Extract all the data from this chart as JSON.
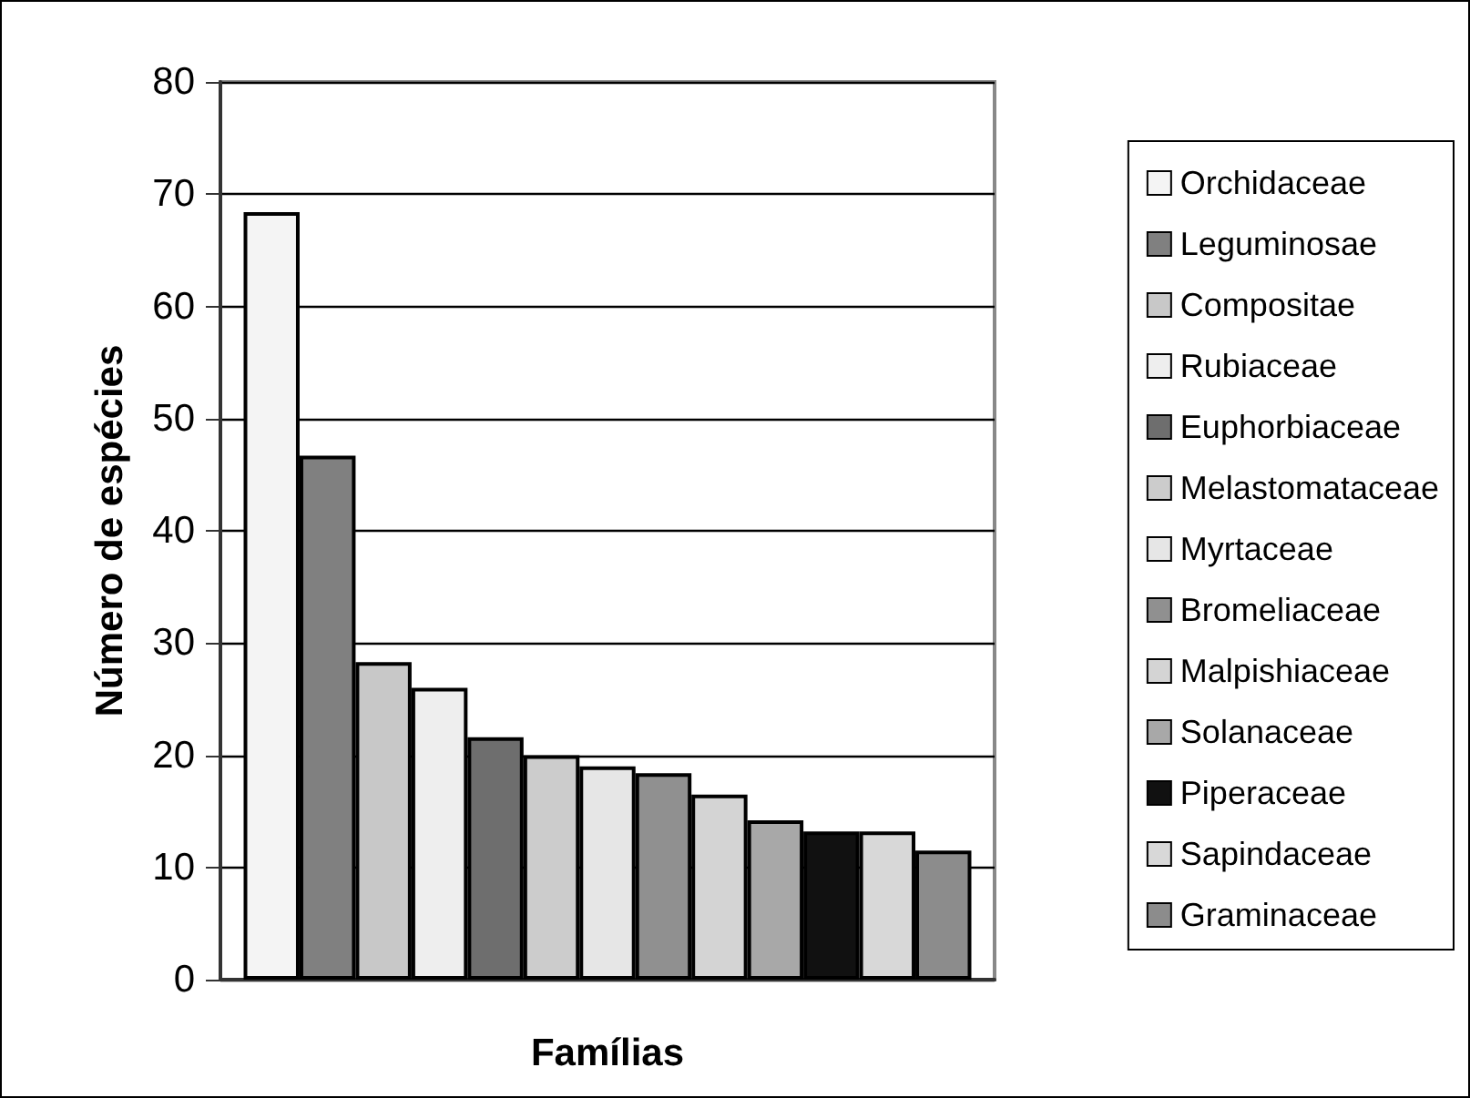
{
  "chart_data": {
    "type": "bar",
    "xlabel": "Famílias",
    "ylabel": "Número de espécies",
    "categories": [
      null
    ],
    "series": [
      {
        "name": "Orchidaceae",
        "color": "#f4f4f4",
        "values": [
          68.4
        ]
      },
      {
        "name": "Leguminosae",
        "color": "#808080",
        "values": [
          46.7
        ]
      },
      {
        "name": "Compositae",
        "color": "#c8c8c8",
        "values": [
          28.3
        ]
      },
      {
        "name": "Rubiaceae",
        "color": "#eeeeee",
        "values": [
          26
        ]
      },
      {
        "name": "Euphorbiaceae",
        "color": "#6e6e6e",
        "values": [
          21.6
        ]
      },
      {
        "name": "Melastomataceae",
        "color": "#cccccc",
        "values": [
          20
        ]
      },
      {
        "name": "Myrtaceae",
        "color": "#e6e6e6",
        "values": [
          19
        ]
      },
      {
        "name": "Bromeliaceae",
        "color": "#909090",
        "values": [
          18.4
        ]
      },
      {
        "name": "Malpishiaceae",
        "color": "#d4d4d4",
        "values": [
          16.5
        ]
      },
      {
        "name": "Solanaceae",
        "color": "#a8a8a8",
        "values": [
          14.2
        ]
      },
      {
        "name": "Piperaceae",
        "color": "#111111",
        "values": [
          13.2
        ]
      },
      {
        "name": "Sapindaceae",
        "color": "#d8d8d8",
        "values": [
          13.2
        ]
      },
      {
        "name": "Graminaceae",
        "color": "#8c8c8c",
        "values": [
          11.5
        ]
      }
    ],
    "ylim": [
      0,
      80
    ],
    "yticks": [
      0,
      10,
      20,
      30,
      40,
      50,
      60,
      70,
      80
    ],
    "grid": "y",
    "legend": "right"
  }
}
